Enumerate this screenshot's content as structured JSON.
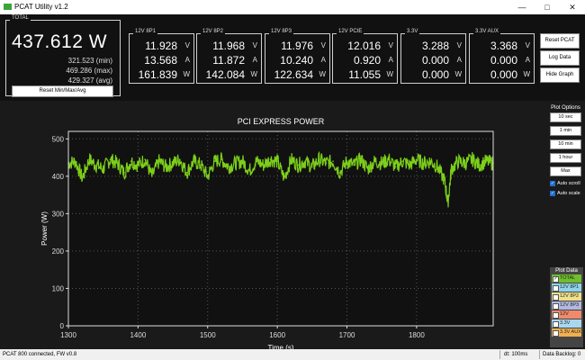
{
  "window": {
    "title": "PCAT Utility v1.2"
  },
  "total": {
    "label": "TOTAL",
    "value": "437.612 W",
    "min": "321.523 (min)",
    "max": "469.286 (max)",
    "avg": "429.327 (avg)",
    "reset_label": "Reset Min/Max/Avg"
  },
  "rails": [
    {
      "label": "12V 8P1",
      "v": "11.928",
      "a": "13.568",
      "w": "161.839"
    },
    {
      "label": "12V 8P2",
      "v": "11.968",
      "a": "11.872",
      "w": "142.084"
    },
    {
      "label": "12V 8P3",
      "v": "11.976",
      "a": "10.240",
      "w": "122.634"
    },
    {
      "label": "12V PCIE",
      "v": "12.016",
      "a": "0.920",
      "w": "11.055"
    },
    {
      "label": "3.3V",
      "v": "3.288",
      "a": "0.000",
      "w": "0.000"
    },
    {
      "label": "3.3V AUX",
      "v": "3.368",
      "a": "0.000",
      "w": "0.000"
    }
  ],
  "units": {
    "v": "V",
    "a": "A",
    "w": "W"
  },
  "buttons": {
    "reset_pcat": "Reset PCAT",
    "log_data": "Log Data",
    "hide_graph": "Hide Graph"
  },
  "plot_options": {
    "header": "Plot Options",
    "ranges": [
      "10 sec",
      "1 min",
      "10 min",
      "1 hour",
      "Max"
    ],
    "auto_scroll": "Auto scroll",
    "auto_scale": "Auto scale"
  },
  "plot_data": {
    "header": "Plot Data",
    "items": [
      {
        "label": "TOTAL",
        "color": "#6fbf2a",
        "checked": true
      },
      {
        "label": "12V 8P1",
        "color": "#8fd3e8",
        "checked": false
      },
      {
        "label": "12V 8P2",
        "color": "#f0e08a",
        "checked": false
      },
      {
        "label": "12V 8P3",
        "color": "#b0b8e0",
        "checked": false
      },
      {
        "label": "12V PCIE",
        "color": "#f08a6a",
        "checked": false
      },
      {
        "label": "3.3V",
        "color": "#a8d8f0",
        "checked": false
      },
      {
        "label": "3.3V AUX",
        "color": "#f0b050",
        "checked": false
      }
    ]
  },
  "status": {
    "connection": "PCAT 800 connected, FW v0.8",
    "dt": "dt: 100ms",
    "backlog": "Data Backlog: 0"
  },
  "chart_data": {
    "type": "line",
    "title": "PCI EXPRESS POWER",
    "xlabel": "Time (s)",
    "ylabel": "Power (W)",
    "xlim": [
      1300,
      1910
    ],
    "ylim": [
      0,
      520
    ],
    "xticks": [
      1300,
      1400,
      1500,
      1600,
      1700,
      1800
    ],
    "yticks": [
      0,
      100,
      200,
      300,
      400,
      500
    ],
    "grid": true,
    "line_color": "#7ccf1a",
    "series": [
      {
        "name": "TOTAL",
        "x": [
          1300,
          1310,
          1320,
          1330,
          1340,
          1350,
          1360,
          1370,
          1380,
          1390,
          1400,
          1410,
          1420,
          1430,
          1440,
          1450,
          1460,
          1470,
          1480,
          1490,
          1500,
          1510,
          1520,
          1530,
          1540,
          1550,
          1560,
          1570,
          1580,
          1590,
          1600,
          1610,
          1620,
          1630,
          1640,
          1650,
          1660,
          1670,
          1680,
          1690,
          1700,
          1710,
          1720,
          1730,
          1740,
          1750,
          1760,
          1770,
          1780,
          1790,
          1800,
          1810,
          1820,
          1830,
          1840,
          1845,
          1850,
          1860,
          1870,
          1880,
          1890,
          1900,
          1910
        ],
        "y": [
          435,
          440,
          395,
          445,
          430,
          420,
          445,
          435,
          410,
          440,
          430,
          445,
          400,
          440,
          425,
          435,
          445,
          410,
          440,
          430,
          400,
          440,
          445,
          425,
          435,
          440,
          415,
          440,
          430,
          445,
          440,
          395,
          445,
          430,
          440,
          425,
          445,
          435,
          440,
          410,
          440,
          430,
          445,
          420,
          440,
          435,
          445,
          425,
          440,
          430,
          445,
          435,
          440,
          425,
          390,
          330,
          420,
          440,
          435,
          445,
          430,
          440,
          435
        ]
      }
    ]
  }
}
